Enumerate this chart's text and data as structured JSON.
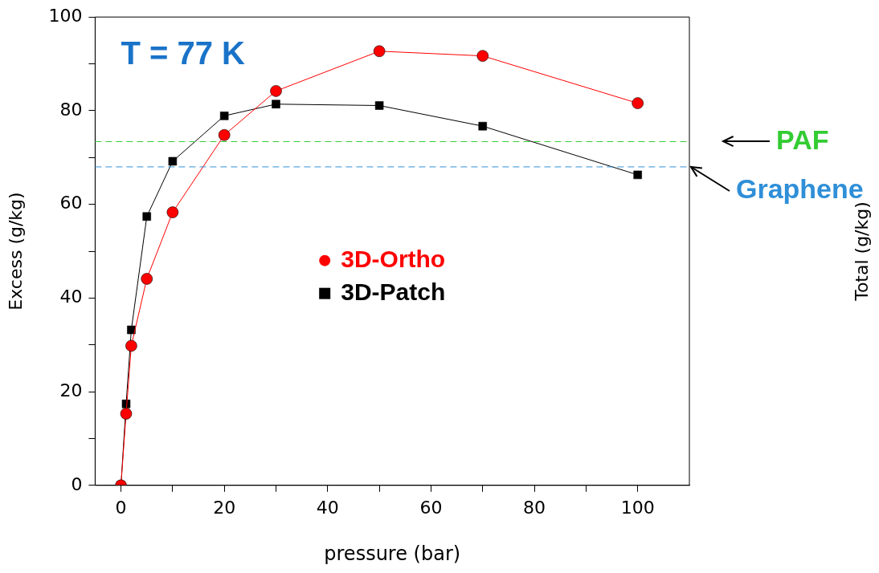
{
  "chart_data": {
    "type": "line",
    "xlabel": "pressure (bar)",
    "ylabel": "Excess (g/kg)",
    "annotations": [
      "T = 77 K",
      "Total (g/kg)"
    ],
    "xlim": [
      -5,
      110
    ],
    "xticks": [
      0,
      {
        "value": 10,
        "label": null
      },
      20,
      {
        "value": 30,
        "label": null
      },
      40,
      {
        "value": 50,
        "label": null
      },
      60,
      {
        "value": 70,
        "label": null
      },
      80,
      {
        "value": 90,
        "label": null
      },
      100
    ],
    "ylim": [
      0,
      100
    ],
    "yticks": [
      0,
      {
        "value": 10,
        "label": null
      },
      20,
      {
        "value": 30,
        "label": null
      },
      40,
      {
        "value": 50,
        "label": null
      },
      60,
      {
        "value": 70,
        "label": null
      },
      80,
      {
        "value": 90,
        "label": null
      },
      100
    ],
    "grid": false,
    "legend": "center",
    "series": [
      {
        "name": "3D-Ortho",
        "color": "#ff0000",
        "marker": "circle",
        "x": [
          0,
          1,
          2,
          5,
          10,
          20,
          30,
          50,
          70,
          100
        ],
        "values": [
          0,
          15.3,
          29.8,
          44.1,
          58.3,
          74.8,
          84.2,
          92.7,
          91.7,
          81.6
        ]
      },
      {
        "name": "3D-Patch",
        "color": "#000000",
        "marker": "square",
        "x": [
          0,
          1,
          2,
          5,
          10,
          20,
          30,
          50,
          70,
          100
        ],
        "values": [
          0,
          17.4,
          33.2,
          57.4,
          69.2,
          78.9,
          81.4,
          81.1,
          76.7,
          66.3
        ]
      }
    ],
    "ref_lines": [
      {
        "axis": "y",
        "value": 73.4,
        "label": "PAF",
        "color": "#33cc33",
        "line_style": "dashed"
      },
      {
        "axis": "y",
        "value": 68.0,
        "label": "Graphene",
        "color": "#2f8fd8",
        "line_style": "dashed"
      }
    ]
  }
}
